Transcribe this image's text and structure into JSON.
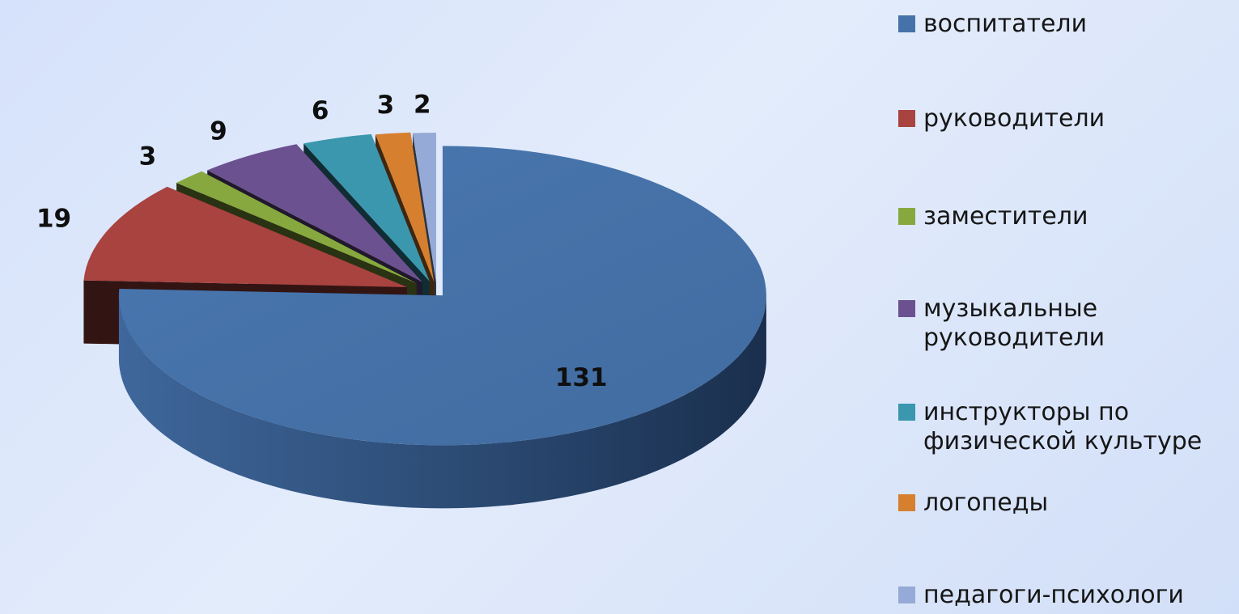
{
  "chart_data": {
    "type": "pie",
    "title": "",
    "series": [
      {
        "categories": [
          "воспитатели",
          "руководители",
          "заместители",
          "музыкальные руководители",
          "инструкторы по физической культуре",
          "логопеды",
          "педагоги-психологи"
        ],
        "values": [
          131,
          19,
          3,
          9,
          6,
          3,
          2
        ],
        "colors": [
          "#4672a9",
          "#a8433f",
          "#87a83f",
          "#6c5191",
          "#3a97ae",
          "#d6802f",
          "#95aad6"
        ],
        "data_labels": [
          "131",
          "19",
          "3",
          "9",
          "6",
          "3",
          "2"
        ]
      }
    ],
    "style": "3d-exploded",
    "legend": "right"
  },
  "legend": {
    "items": [
      {
        "label": "воспитатели",
        "color": "#4672a9"
      },
      {
        "label": "руководители",
        "color": "#a8433f"
      },
      {
        "label": "заместители",
        "color": "#87a83f"
      },
      {
        "label": "музыкальные руководители",
        "color": "#6c5191"
      },
      {
        "label": "инструкторы по физической культуре",
        "color": "#3a97ae"
      },
      {
        "label": "логопеды",
        "color": "#d6802f"
      },
      {
        "label": "педагоги-психологи",
        "color": "#95aad6"
      }
    ]
  }
}
